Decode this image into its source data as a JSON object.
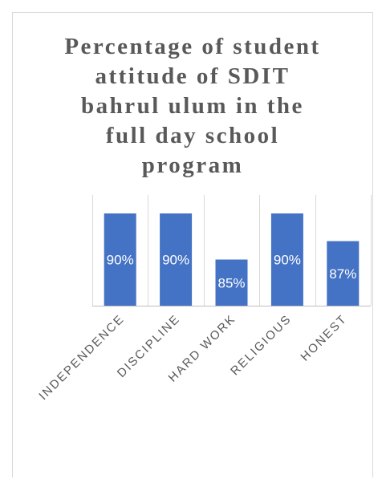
{
  "chart_data": {
    "type": "bar",
    "title": "Percentage of student\nattitude of SDIT\nbahrul ulum in the\nfull day school\nprogram",
    "categories": [
      "INDEPENDENCE",
      "DISCIPLINE",
      "HARD WORK",
      "RELIGIOUS",
      "HONEST"
    ],
    "values": [
      90,
      90,
      85,
      90,
      87
    ],
    "data_labels": [
      "90%",
      "90%",
      "85%",
      "90%",
      "87%"
    ],
    "ylim": [
      80,
      92
    ],
    "bar_color": "#4472c4",
    "grid": true,
    "legend": "none"
  }
}
